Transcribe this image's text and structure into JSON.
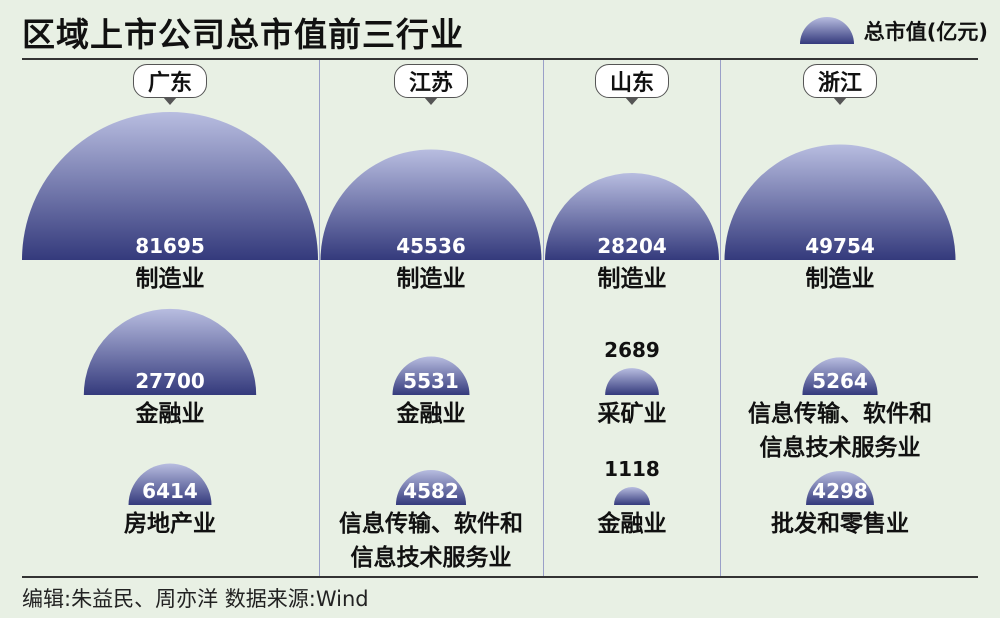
{
  "title": "区域上市公司总市值前三行业",
  "legend": "总市值(亿元)",
  "source": "编辑:朱益民、周亦洋   数据来源:Wind",
  "colors": {
    "dome_top": "#b8bde0",
    "dome_bottom": "#343a7c"
  },
  "chart_data": {
    "type": "other",
    "title": "区域上市公司总市值前三行业",
    "unit": "亿元",
    "regions": [
      {
        "name": "广东",
        "industries": [
          {
            "label": "制造业",
            "value": 81695
          },
          {
            "label": "金融业",
            "value": 27700
          },
          {
            "label": "房地产业",
            "value": 6414
          }
        ]
      },
      {
        "name": "江苏",
        "industries": [
          {
            "label": "制造业",
            "value": 45536
          },
          {
            "label": "金融业",
            "value": 5531
          },
          {
            "label": "信息传输、软件和\n信息技术服务业",
            "value": 4582
          }
        ]
      },
      {
        "name": "山东",
        "industries": [
          {
            "label": "制造业",
            "value": 28204
          },
          {
            "label": "采矿业",
            "value": 2689
          },
          {
            "label": "金融业",
            "value": 1118
          }
        ]
      },
      {
        "name": "浙江",
        "industries": [
          {
            "label": "制造业",
            "value": 49754
          },
          {
            "label": "信息传输、软件和\n信息技术服务业",
            "value": 5264
          },
          {
            "label": "批发和零售业",
            "value": 4298
          }
        ]
      }
    ]
  }
}
